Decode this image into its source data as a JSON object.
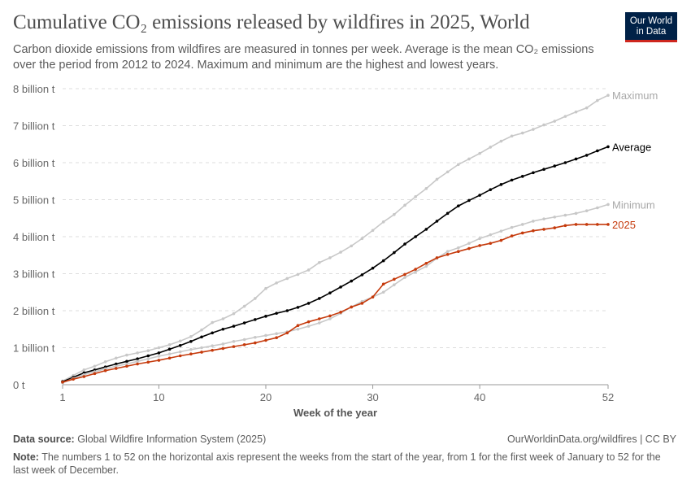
{
  "header": {
    "title": "Cumulative CO₂ emissions released by wildfires in 2025, World",
    "subtitle": "Carbon dioxide emissions from wildfires are measured in tonnes per week. Average is the mean CO₂ emissions over the period from 2012 to 2024. Maximum and minimum are the highest and lowest years.",
    "logo": "Our World in Data"
  },
  "chart_data": {
    "type": "line",
    "title": "Cumulative CO₂ emissions released by wildfires in 2025, World",
    "xlabel": "Week of the year",
    "ylabel": "",
    "xlim": [
      1,
      52
    ],
    "ylim": [
      0,
      8
    ],
    "x_ticks": [
      "1",
      "10",
      "20",
      "30",
      "40",
      "52"
    ],
    "y_ticks": [
      "0 t",
      "1 billion t",
      "2 billion t",
      "3 billion t",
      "4 billion t",
      "5 billion t",
      "6 billion t",
      "7 billion t",
      "8 billion t"
    ],
    "grid": "horizontal dashed",
    "legend": "line-end labels right",
    "unit": "billion t",
    "series": [
      {
        "name": "Maximum",
        "color": "#c8c8c8",
        "values": [
          0.1,
          0.25,
          0.4,
          0.5,
          0.62,
          0.72,
          0.8,
          0.86,
          0.92,
          1.0,
          1.08,
          1.18,
          1.3,
          1.48,
          1.68,
          1.78,
          1.92,
          2.12,
          2.33,
          2.6,
          2.75,
          2.87,
          2.98,
          3.1,
          3.3,
          3.43,
          3.58,
          3.75,
          3.95,
          4.17,
          4.4,
          4.6,
          4.85,
          5.08,
          5.3,
          5.55,
          5.75,
          5.95,
          6.1,
          6.25,
          6.42,
          6.58,
          6.72,
          6.8,
          6.9,
          7.02,
          7.12,
          7.25,
          7.37,
          7.48,
          7.68,
          7.82
        ]
      },
      {
        "name": "Average",
        "color": "#000000",
        "values": [
          0.08,
          0.2,
          0.32,
          0.4,
          0.48,
          0.56,
          0.63,
          0.7,
          0.78,
          0.86,
          0.96,
          1.06,
          1.17,
          1.29,
          1.4,
          1.5,
          1.58,
          1.67,
          1.76,
          1.85,
          1.93,
          2.0,
          2.09,
          2.2,
          2.33,
          2.48,
          2.64,
          2.8,
          2.97,
          3.15,
          3.35,
          3.57,
          3.8,
          4.0,
          4.2,
          4.42,
          4.63,
          4.83,
          4.98,
          5.12,
          5.27,
          5.41,
          5.53,
          5.63,
          5.73,
          5.82,
          5.91,
          6.0,
          6.1,
          6.2,
          6.32,
          6.43
        ]
      },
      {
        "name": "Minimum",
        "color": "#c8c8c8",
        "values": [
          0.05,
          0.17,
          0.27,
          0.35,
          0.43,
          0.5,
          0.56,
          0.63,
          0.7,
          0.77,
          0.83,
          0.89,
          0.95,
          1.0,
          1.05,
          1.1,
          1.17,
          1.22,
          1.28,
          1.33,
          1.38,
          1.43,
          1.5,
          1.58,
          1.67,
          1.78,
          1.93,
          2.1,
          2.25,
          2.37,
          2.5,
          2.7,
          2.9,
          3.05,
          3.2,
          3.42,
          3.6,
          3.7,
          3.82,
          3.95,
          4.05,
          4.15,
          4.25,
          4.33,
          4.42,
          4.48,
          4.53,
          4.58,
          4.63,
          4.7,
          4.78,
          4.87
        ]
      },
      {
        "name": "2025",
        "color": "#c53a0c",
        "values": [
          0.07,
          0.15,
          0.22,
          0.3,
          0.38,
          0.44,
          0.5,
          0.56,
          0.61,
          0.66,
          0.72,
          0.78,
          0.83,
          0.88,
          0.93,
          0.98,
          1.03,
          1.08,
          1.13,
          1.2,
          1.27,
          1.4,
          1.6,
          1.7,
          1.78,
          1.86,
          1.96,
          2.1,
          2.2,
          2.37,
          2.72,
          2.85,
          2.98,
          3.12,
          3.28,
          3.43,
          3.52,
          3.6,
          3.68,
          3.76,
          3.82,
          3.9,
          4.02,
          4.1,
          4.16,
          4.2,
          4.24,
          4.3,
          4.33,
          4.33,
          4.33,
          4.33
        ]
      }
    ]
  },
  "footer": {
    "source_label": "Data source:",
    "source": "Global Wildfire Information System (2025)",
    "url": "OurWorldinData.org/wildfires | CC BY",
    "note_label": "Note:",
    "note": "The numbers 1 to 52 on the horizontal axis represent the weeks from the start of the year, from 1 for the first week of January to 52 for the last week of December."
  }
}
